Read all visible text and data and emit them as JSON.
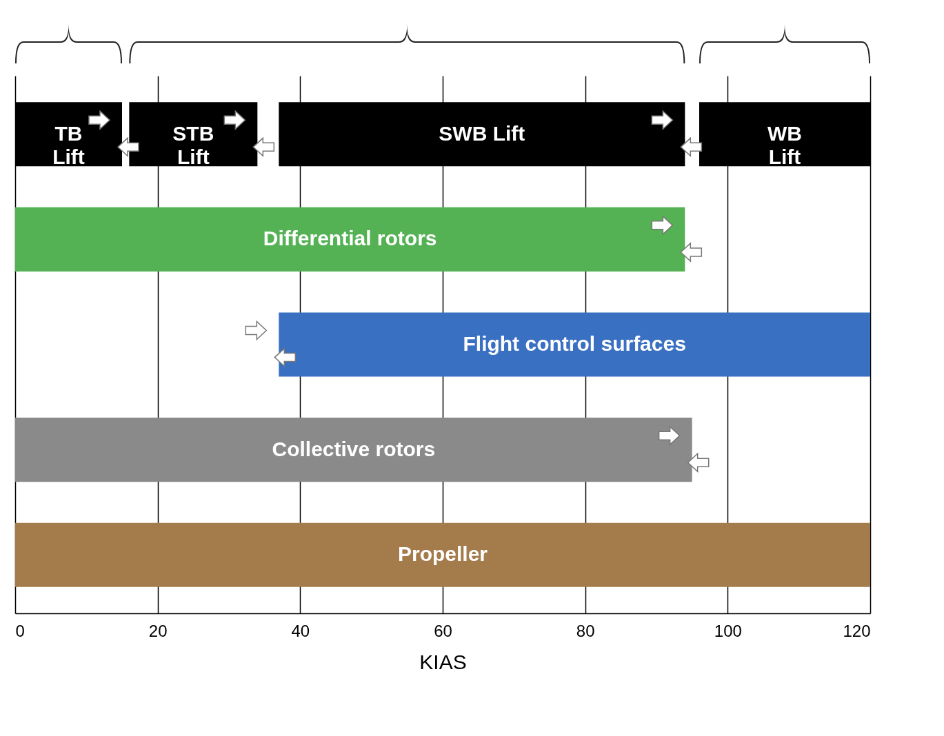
{
  "chart_data": {
    "type": "bar",
    "orientation": "horizontal",
    "xlabel": "KIAS",
    "categories": [
      null,
      null,
      null,
      null,
      null
    ],
    "xlim": [
      0,
      120
    ],
    "xticks": [
      0,
      20,
      40,
      60,
      80,
      100,
      120
    ],
    "grid": "x",
    "series": [
      {
        "name": "TB Lift",
        "color": "#000000",
        "base": [
          0,
          null,
          null,
          null,
          null
        ],
        "values": [
          15,
          null,
          null,
          null,
          null
        ]
      },
      {
        "name": "STB Lift",
        "color": "#000000",
        "base": [
          16,
          null,
          null,
          null,
          null
        ],
        "values": [
          18,
          null,
          null,
          null,
          null
        ]
      },
      {
        "name": "SWB Lift",
        "color": "#000000",
        "base": [
          37,
          null,
          null,
          null,
          null
        ],
        "values": [
          57,
          null,
          null,
          null,
          null
        ]
      },
      {
        "name": "WB Lift",
        "color": "#000000",
        "base": [
          96,
          null,
          null,
          null,
          null
        ],
        "values": [
          24,
          null,
          null,
          null,
          null
        ]
      },
      {
        "name": "Differential rotors",
        "color": "#55b254",
        "base": [
          null,
          0,
          null,
          null,
          null
        ],
        "values": [
          null,
          94,
          null,
          null,
          null
        ]
      },
      {
        "name": "Flight control surfaces",
        "color": "#3a70c2",
        "base": [
          null,
          null,
          37,
          null,
          null
        ],
        "values": [
          null,
          null,
          83,
          null,
          null
        ]
      },
      {
        "name": "Collective rotors",
        "color": "#8a8a8a",
        "base": [
          null,
          null,
          null,
          0,
          null
        ],
        "values": [
          null,
          null,
          null,
          95,
          null
        ]
      },
      {
        "name": "Propeller",
        "color": "#a47b4a",
        "base": [
          null,
          null,
          null,
          null,
          0
        ],
        "values": [
          null,
          null,
          null,
          null,
          120
        ]
      }
    ]
  }
}
